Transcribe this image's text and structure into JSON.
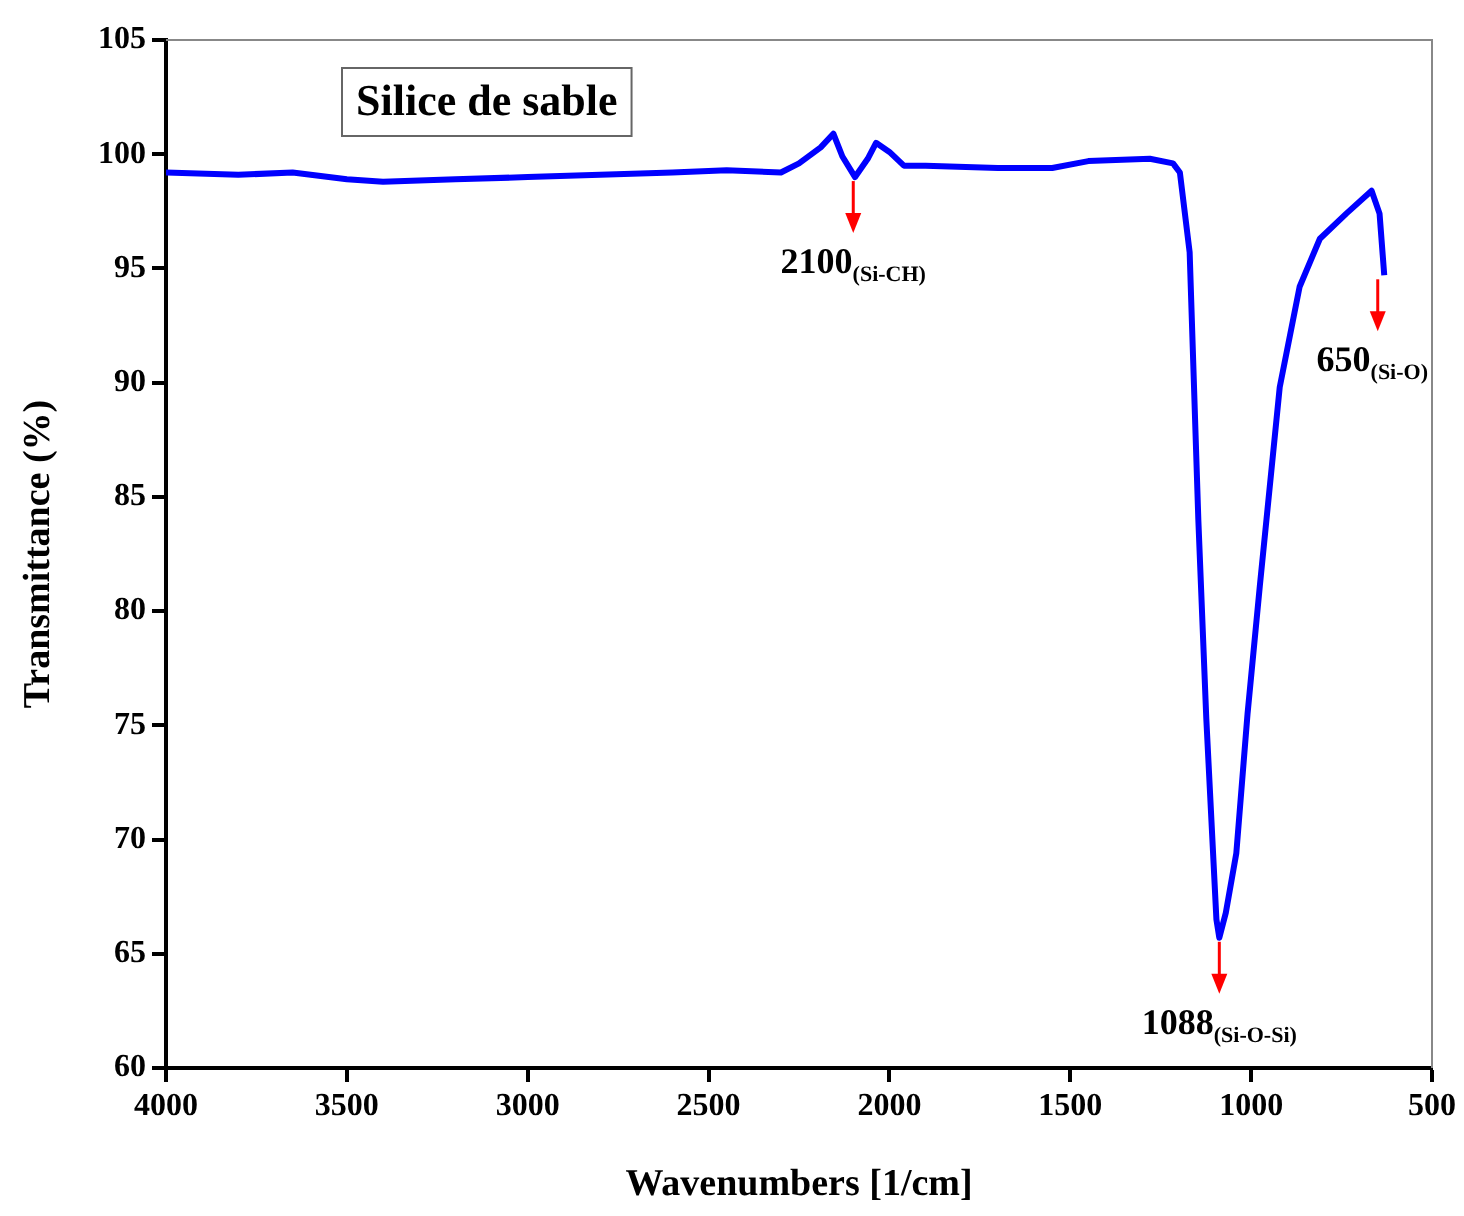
{
  "chart_data": {
    "type": "line",
    "title": "Silice de sable",
    "xlabel": "Wavenumbers [1/cm]",
    "ylabel": "Transmittance (%)",
    "xlim": [
      4000,
      500
    ],
    "xticks": [
      4000,
      3500,
      3000,
      2500,
      2000,
      1500,
      1000,
      500
    ],
    "ylim": [
      60,
      105
    ],
    "yticks": [
      60,
      65,
      70,
      75,
      80,
      85,
      90,
      95,
      100,
      105
    ],
    "marker": "none",
    "annotations": [
      {
        "text": "2100$_{(Si-CH)}$",
        "x": 2100,
        "y": 99.0
      },
      {
        "text": "1088$_{(Si-O-Si)}$",
        "x": 1088,
        "y": 65.7
      },
      {
        "text": "650$_{(Si-O)}$",
        "x": 650,
        "y": 94.7
      }
    ],
    "series": [
      {
        "color": "#0000ff",
        "x": [
          4000,
          3800,
          3650,
          3500,
          3400,
          3200,
          3000,
          2800,
          2600,
          2450,
          2300,
          2250,
          2190,
          2155,
          2130,
          2095,
          2060,
          2037,
          2000,
          1960,
          1900,
          1700,
          1550,
          1450,
          1280,
          1216,
          1197,
          1170,
          1146,
          1124,
          1096,
          1088,
          1070,
          1041,
          1010,
          976,
          921,
          866,
          810,
          737,
          667,
          645,
          632
        ],
        "values": [
          99.2,
          99.1,
          99.2,
          98.9,
          98.8,
          98.9,
          99.0,
          99.1,
          99.2,
          99.3,
          99.2,
          99.6,
          100.3,
          100.9,
          99.9,
          99.0,
          99.8,
          100.5,
          100.1,
          99.5,
          99.5,
          99.4,
          99.4,
          99.7,
          99.8,
          99.6,
          99.2,
          95.7,
          84.0,
          75.3,
          66.5,
          65.7,
          66.8,
          69.4,
          75.5,
          81.1,
          89.8,
          94.2,
          96.3,
          97.4,
          98.4,
          97.4,
          94.7
        ]
      }
    ]
  }
}
